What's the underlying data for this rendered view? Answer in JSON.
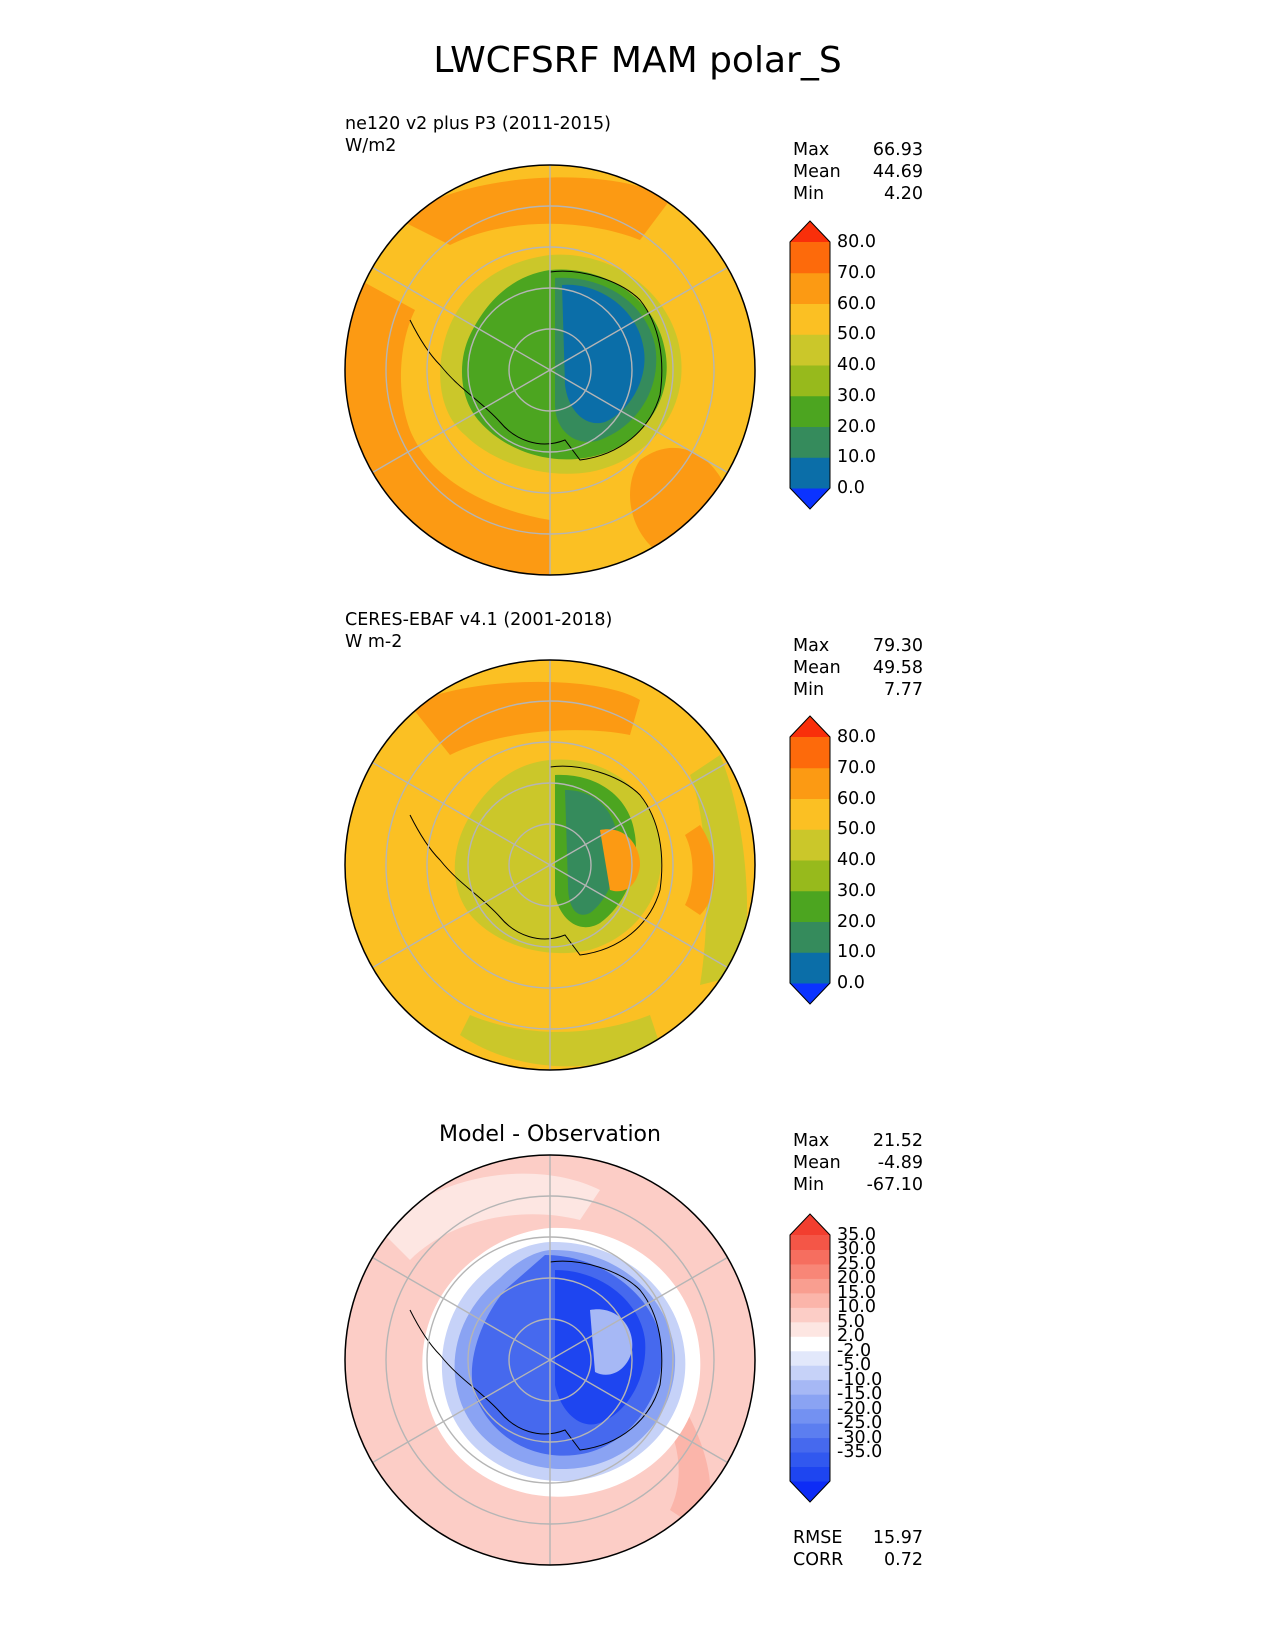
{
  "figure": {
    "title": "LWCFSRF MAM polar_S"
  },
  "panels": [
    {
      "id": "model",
      "title": "ne120 v2 plus P3 (2011-2015)",
      "units": "W/m2",
      "stats": {
        "max_label": "Max",
        "max": "66.93",
        "mean_label": "Mean",
        "mean": "44.69",
        "min_label": "Min",
        "min": "4.20"
      },
      "colorbar": {
        "ticks": [
          "80.0",
          "70.0",
          "60.0",
          "50.0",
          "40.0",
          "30.0",
          "20.0",
          "10.0",
          "0.0"
        ],
        "colors": [
          "#0b33ff",
          "#0b6ea8",
          "#358b5c",
          "#4ca520",
          "#97ba1c",
          "#cbc72a",
          "#fbc023",
          "#fc9a13",
          "#fd6a0b",
          "#f92f0a"
        ]
      }
    },
    {
      "id": "obs",
      "title": "CERES-EBAF v4.1 (2001-2018)",
      "units": "W m-2",
      "stats": {
        "max_label": "Max",
        "max": "79.30",
        "mean_label": "Mean",
        "mean": "49.58",
        "min_label": "Min",
        "min": "7.77"
      },
      "colorbar": {
        "ticks": [
          "80.0",
          "70.0",
          "60.0",
          "50.0",
          "40.0",
          "30.0",
          "20.0",
          "10.0",
          "0.0"
        ],
        "colors": [
          "#0b33ff",
          "#0b6ea8",
          "#358b5c",
          "#4ca520",
          "#97ba1c",
          "#cbc72a",
          "#fbc023",
          "#fc9a13",
          "#fd6a0b",
          "#f92f0a"
        ]
      }
    },
    {
      "id": "diff",
      "title": "Model - Observation",
      "stats": {
        "max_label": "Max",
        "max": "21.52",
        "mean_label": "Mean",
        "mean": "-4.89",
        "min_label": "Min",
        "min": "-67.10"
      },
      "colorbar": {
        "ticks": [
          "35.0",
          "30.0",
          "25.0",
          "20.0",
          "15.0",
          "10.0",
          "5.0",
          "2.0",
          "-2.0",
          "-5.0",
          "-10.0",
          "-15.0",
          "-20.0",
          "-25.0",
          "-30.0",
          "-35.0"
        ],
        "colors": [
          "#0d2cf6",
          "#1e45f0",
          "#3158ef",
          "#4669ee",
          "#5c7ef0",
          "#7391f2",
          "#8aa3f3",
          "#a6b8f5",
          "#c6d2f8",
          "#e2e8fb",
          "#ffffff",
          "#fde6e2",
          "#fccdc6",
          "#fbb5aa",
          "#f99e90",
          "#f88677",
          "#f66e5f",
          "#f45647",
          "#f23e2f"
        ]
      },
      "metrics": {
        "rmse_label": "RMSE",
        "rmse": "15.97",
        "corr_label": "CORR",
        "corr": "0.72"
      }
    }
  ]
}
